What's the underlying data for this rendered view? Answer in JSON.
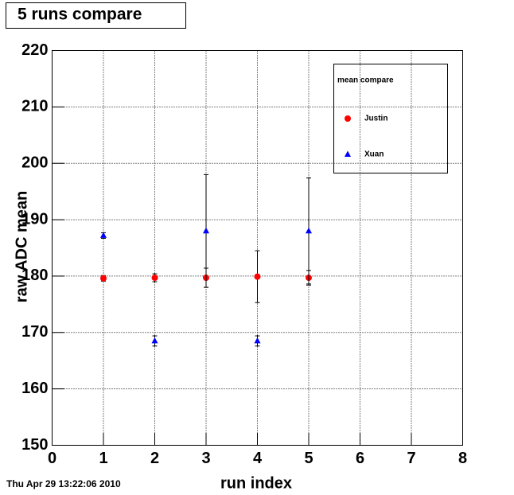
{
  "chart_data": {
    "type": "scatter",
    "title": "5 runs compare",
    "x_label": "run index",
    "y_label": "raw ADC mean",
    "footer": "Thu Apr 29 13:22:06 2010",
    "legend_title": "mean compare",
    "x": [
      1,
      2,
      3,
      4,
      5
    ],
    "series": [
      {
        "name": "Justin",
        "color": "#ff0000",
        "marker": "circle",
        "values": [
          179.6,
          179.7,
          179.7,
          179.9,
          179.7
        ],
        "errors": [
          0.5,
          0.7,
          1.7,
          4.6,
          1.3
        ]
      },
      {
        "name": "Xuan",
        "color": "#0000ff",
        "marker": "triangle",
        "values": [
          187.2,
          168.5,
          188,
          168.5,
          188
        ],
        "errors": [
          0.5,
          0.9,
          10,
          0.9,
          9.4
        ]
      }
    ],
    "xlim": [
      0,
      8
    ],
    "xticks": [
      0,
      1,
      2,
      3,
      4,
      5,
      6,
      7,
      8
    ],
    "ylim": [
      150,
      220
    ],
    "yticks": [
      150,
      160,
      170,
      180,
      190,
      200,
      210,
      220
    ],
    "grid": true
  }
}
